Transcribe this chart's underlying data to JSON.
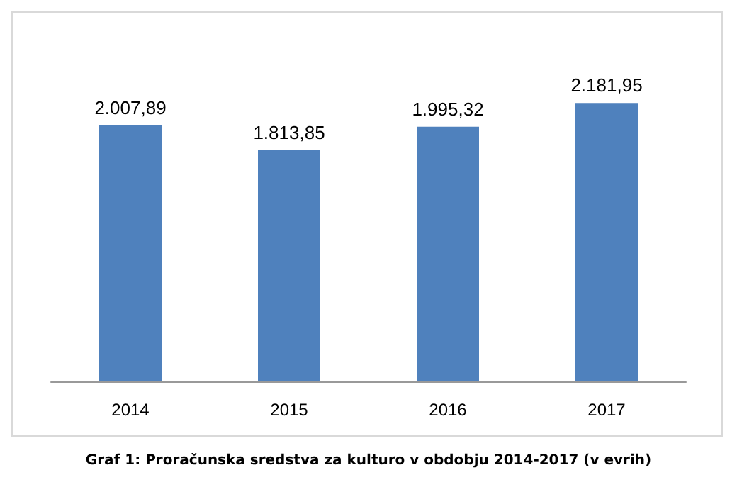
{
  "chart_data": {
    "type": "bar",
    "title": "Graf 1: Proračunska sredstva za kulturo v obdobju 2014-2017 (v evrih)",
    "categories": [
      "2014",
      "2015",
      "2016",
      "2017"
    ],
    "values": [
      2007.89,
      1813.85,
      1995.32,
      2181.95
    ],
    "value_labels": [
      "2.007,89",
      "1.813,85",
      "1.995,32",
      "2.181,95"
    ],
    "color": "#4f81bd"
  }
}
